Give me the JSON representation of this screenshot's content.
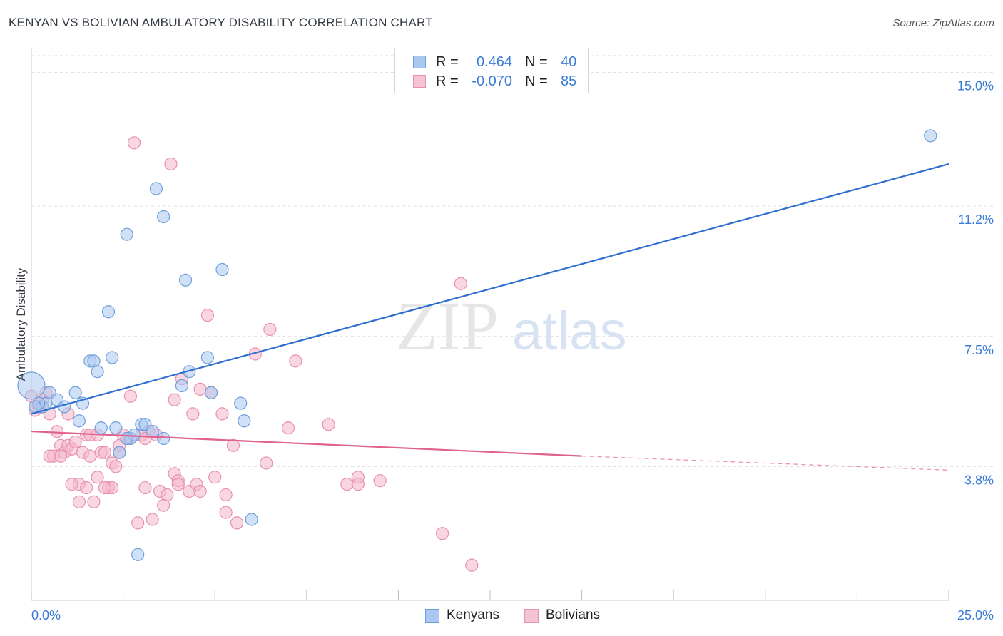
{
  "title": "KENYAN VS BOLIVIAN AMBULATORY DISABILITY CORRELATION CHART",
  "source": "Source: ZipAtlas.com",
  "watermark": {
    "part1": "ZIP",
    "part2": "atlas"
  },
  "legend_top": [
    {
      "r_label": "R =",
      "r_value": "0.464",
      "n_label": "N =",
      "n_value": "40"
    },
    {
      "r_label": "R =",
      "r_value": "-0.070",
      "n_label": "N =",
      "n_value": "85"
    }
  ],
  "legend_bottom": {
    "series1": "Kenyans",
    "series2": "Bolivians"
  },
  "x_tick_labels": {
    "min": "0.0%",
    "max": "25.0%"
  },
  "colors": {
    "blue_fill": "#a9c8f0",
    "blue_stroke": "#6f9fdc",
    "blue_line": "#2f6fcf",
    "pink_fill": "#f4b6ca",
    "pink_stroke": "#e890ae",
    "pink_line": "#e0608e",
    "tick_text": "#3a7bd5",
    "grid": "#dddddd"
  },
  "chart_data": {
    "type": "scatter",
    "title": "KENYAN VS BOLIVIAN AMBULATORY DISABILITY CORRELATION CHART",
    "xlabel": "",
    "ylabel": "Ambulatory Disability",
    "xlim": [
      0,
      25
    ],
    "ylim": [
      0,
      15.6
    ],
    "y_ticks": [
      {
        "value": 3.8,
        "label": "3.8%"
      },
      {
        "value": 7.5,
        "label": "7.5%"
      },
      {
        "value": 11.2,
        "label": "11.2%"
      },
      {
        "value": 15.0,
        "label": "15.0%"
      }
    ],
    "grid": true,
    "legend_position": "top-center",
    "series": [
      {
        "name": "Kenyans",
        "color": "#6f9fdc",
        "trend": {
          "x": [
            0,
            25
          ],
          "y": [
            5.3,
            12.4
          ],
          "style": "solid"
        },
        "points": [
          [
            0.0,
            6.1
          ],
          [
            0.3,
            5.5
          ],
          [
            0.4,
            5.6
          ],
          [
            0.5,
            5.9
          ],
          [
            0.7,
            5.7
          ],
          [
            0.9,
            5.5
          ],
          [
            1.2,
            5.9
          ],
          [
            1.3,
            5.1
          ],
          [
            1.4,
            5.6
          ],
          [
            1.6,
            6.8
          ],
          [
            1.7,
            6.8
          ],
          [
            1.8,
            6.5
          ],
          [
            1.9,
            4.9
          ],
          [
            2.1,
            8.2
          ],
          [
            2.2,
            6.9
          ],
          [
            2.3,
            4.9
          ],
          [
            2.4,
            4.2
          ],
          [
            2.6,
            10.4
          ],
          [
            2.7,
            4.6
          ],
          [
            2.8,
            4.7
          ],
          [
            2.9,
            1.3
          ],
          [
            3.0,
            5.0
          ],
          [
            3.1,
            5.0
          ],
          [
            3.3,
            4.8
          ],
          [
            3.4,
            11.7
          ],
          [
            3.6,
            4.6
          ],
          [
            3.6,
            10.9
          ],
          [
            4.1,
            6.1
          ],
          [
            4.2,
            9.1
          ],
          [
            4.3,
            6.5
          ],
          [
            4.8,
            6.9
          ],
          [
            4.9,
            5.9
          ],
          [
            5.2,
            9.4
          ],
          [
            5.7,
            5.6
          ],
          [
            5.8,
            5.1
          ],
          [
            6.0,
            2.3
          ],
          [
            0.2,
            5.6
          ],
          [
            0.1,
            5.5
          ],
          [
            2.6,
            4.6
          ],
          [
            24.5,
            13.2
          ]
        ]
      },
      {
        "name": "Bolivians",
        "color": "#e890ae",
        "trend": {
          "x": [
            0,
            15
          ],
          "y": [
            4.8,
            4.1
          ],
          "style": "solid",
          "extension": {
            "x": [
              15,
              25
            ],
            "y": [
              4.1,
              3.7
            ],
            "style": "dashed"
          }
        },
        "points": [
          [
            0.0,
            5.8
          ],
          [
            0.1,
            5.4
          ],
          [
            0.2,
            5.6
          ],
          [
            0.3,
            5.5
          ],
          [
            0.4,
            5.9
          ],
          [
            0.5,
            5.3
          ],
          [
            0.6,
            4.1
          ],
          [
            0.7,
            4.8
          ],
          [
            0.8,
            4.4
          ],
          [
            0.9,
            4.2
          ],
          [
            1.0,
            5.3
          ],
          [
            1.0,
            4.4
          ],
          [
            1.1,
            4.3
          ],
          [
            1.2,
            4.5
          ],
          [
            1.3,
            2.8
          ],
          [
            1.3,
            3.3
          ],
          [
            1.4,
            4.2
          ],
          [
            1.5,
            4.7
          ],
          [
            1.5,
            3.2
          ],
          [
            1.6,
            4.1
          ],
          [
            1.7,
            2.8
          ],
          [
            1.8,
            4.7
          ],
          [
            1.8,
            3.5
          ],
          [
            1.9,
            4.2
          ],
          [
            2.0,
            4.2
          ],
          [
            2.1,
            3.2
          ],
          [
            2.2,
            3.9
          ],
          [
            2.2,
            3.2
          ],
          [
            2.3,
            3.8
          ],
          [
            2.4,
            4.4
          ],
          [
            2.5,
            4.7
          ],
          [
            2.6,
            4.6
          ],
          [
            2.7,
            5.8
          ],
          [
            2.8,
            13.0
          ],
          [
            2.9,
            2.2
          ],
          [
            3.0,
            4.7
          ],
          [
            3.1,
            3.2
          ],
          [
            3.2,
            4.8
          ],
          [
            3.3,
            2.3
          ],
          [
            3.4,
            4.7
          ],
          [
            3.5,
            3.1
          ],
          [
            3.6,
            2.7
          ],
          [
            3.7,
            3.0
          ],
          [
            3.8,
            12.4
          ],
          [
            3.9,
            3.6
          ],
          [
            3.9,
            5.7
          ],
          [
            4.0,
            3.4
          ],
          [
            4.1,
            6.3
          ],
          [
            4.3,
            3.1
          ],
          [
            4.4,
            5.3
          ],
          [
            4.5,
            3.3
          ],
          [
            4.6,
            6.0
          ],
          [
            4.8,
            8.1
          ],
          [
            4.9,
            5.9
          ],
          [
            5.0,
            3.5
          ],
          [
            5.2,
            5.3
          ],
          [
            5.3,
            3.0
          ],
          [
            5.3,
            2.5
          ],
          [
            5.5,
            4.4
          ],
          [
            5.6,
            2.2
          ],
          [
            6.1,
            7.0
          ],
          [
            6.4,
            3.9
          ],
          [
            6.5,
            7.7
          ],
          [
            7.0,
            4.9
          ],
          [
            7.2,
            6.8
          ],
          [
            8.1,
            5.0
          ],
          [
            8.6,
            3.3
          ],
          [
            8.9,
            3.3
          ],
          [
            8.9,
            3.5
          ],
          [
            9.5,
            3.4
          ],
          [
            11.2,
            1.9
          ],
          [
            11.7,
            9.0
          ],
          [
            12.0,
            1.0
          ],
          [
            0.5,
            4.1
          ],
          [
            1.1,
            3.3
          ],
          [
            2.0,
            3.2
          ],
          [
            2.4,
            4.2
          ],
          [
            3.1,
            4.6
          ],
          [
            4.0,
            3.3
          ],
          [
            4.6,
            3.1
          ],
          [
            0.8,
            4.1
          ],
          [
            1.6,
            4.7
          ],
          [
            2.7,
            4.6
          ],
          [
            0.3,
            5.7
          ],
          [
            0.2,
            5.5
          ]
        ]
      }
    ]
  }
}
